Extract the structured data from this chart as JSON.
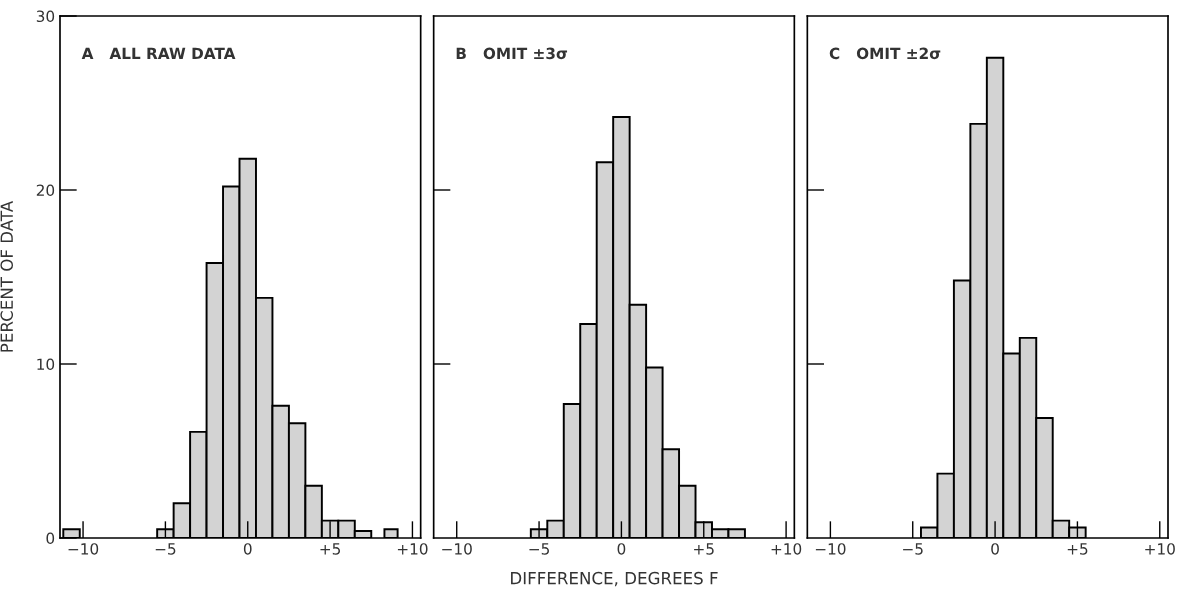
{
  "chart_data": [
    {
      "type": "histogram",
      "title": "A   ALL RAW DATA",
      "ylabel": "PERCENT OF DATA",
      "color": "#d3d3d3",
      "bins": [
        -11.2,
        -10.2,
        -5.5,
        -4.5,
        -3.5,
        -2.5,
        -1.5,
        -0.5,
        0.5,
        1.5,
        2.5,
        3.5,
        4.5,
        5.5,
        6.5,
        7.5,
        8.3,
        9.1
      ],
      "values": [
        0.5,
        0,
        0.5,
        2.0,
        6.1,
        15.8,
        20.2,
        21.8,
        13.8,
        7.6,
        6.6,
        3.0,
        1.0,
        1.0,
        0.4,
        0,
        0.5
      ],
      "xlim": [
        -11.4,
        10.5
      ],
      "xticks": [
        {
          "value": -10,
          "label": "−10"
        },
        {
          "value": -5,
          "label": "−5"
        },
        0,
        {
          "value": 5,
          "label": "+5"
        },
        {
          "value": 10,
          "label": "+10"
        }
      ],
      "ylim": [
        0,
        30
      ],
      "yticks": [
        0,
        10,
        20,
        30
      ],
      "grid": false,
      "legend": false
    },
    {
      "type": "histogram",
      "title": "B   OMIT ±3σ",
      "xlabel": "DIFFERENCE, DEGREES F",
      "color": "#d3d3d3",
      "bins": [
        -5.5,
        -4.5,
        -3.5,
        -2.5,
        -1.5,
        -0.5,
        0.5,
        1.5,
        2.5,
        3.5,
        4.5,
        5.5,
        6.5,
        7.5
      ],
      "values": [
        0.5,
        1.0,
        7.7,
        12.3,
        21.6,
        24.2,
        13.4,
        9.8,
        5.1,
        3.0,
        0.9,
        0.5,
        0.5
      ],
      "xlim": [
        -11.4,
        10.5
      ],
      "xticks": [
        {
          "value": -10,
          "label": "−10"
        },
        {
          "value": -5,
          "label": "−5"
        },
        0,
        {
          "value": 5,
          "label": "+5"
        },
        {
          "value": 10,
          "label": "+10"
        }
      ],
      "ylim": [
        0,
        30
      ],
      "yticks": [
        10,
        20
      ],
      "tick_labels": "x",
      "grid": false,
      "legend": false
    },
    {
      "type": "histogram",
      "title": "C   OMIT ±2σ",
      "color": "#d3d3d3",
      "bins": [
        -4.5,
        -3.5,
        -2.5,
        -1.5,
        -0.5,
        0.5,
        1.5,
        2.5,
        3.5,
        4.5,
        5.5
      ],
      "values": [
        0.6,
        3.7,
        14.8,
        23.8,
        27.6,
        10.6,
        11.5,
        6.9,
        1.0,
        0.6
      ],
      "xlim": [
        -11.4,
        10.5
      ],
      "xticks": [
        {
          "value": -10,
          "label": "−10"
        },
        {
          "value": -5,
          "label": "−5"
        },
        0,
        {
          "value": 5,
          "label": "+5"
        },
        {
          "value": 10,
          "label": "+10"
        }
      ],
      "ylim": [
        0,
        30
      ],
      "yticks": [
        10,
        20
      ],
      "tick_labels": "x",
      "grid": false,
      "legend": false
    }
  ]
}
